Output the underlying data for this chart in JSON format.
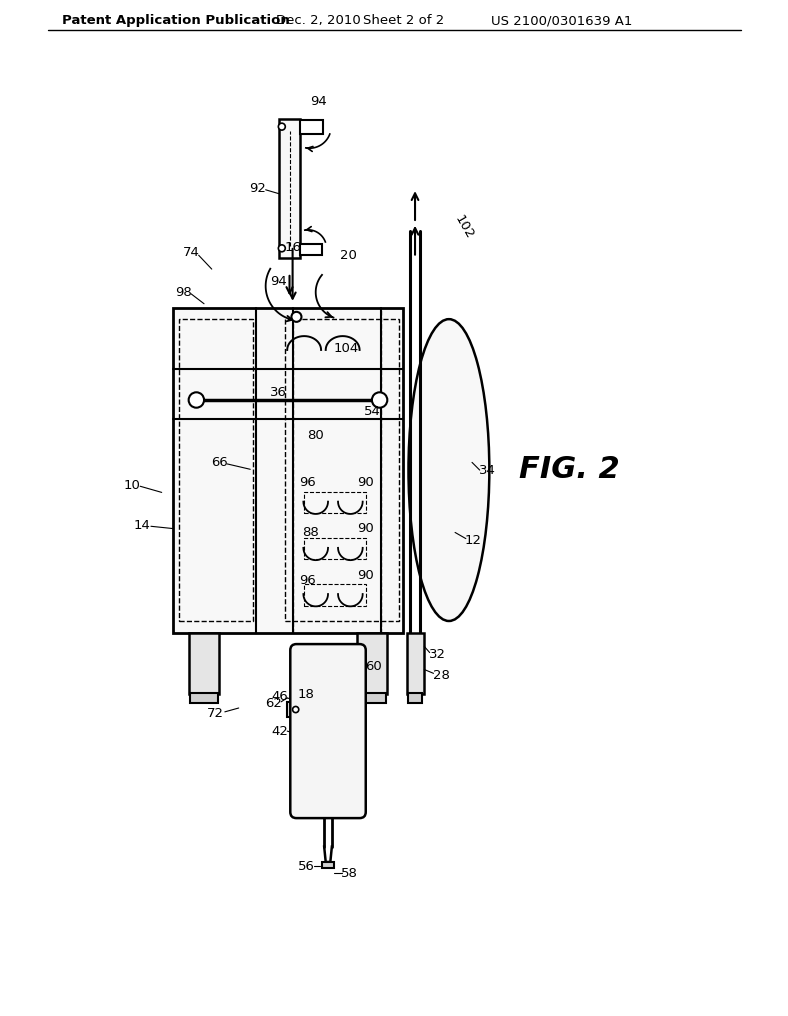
{
  "background_color": "#ffffff",
  "header_left": "Patent Application Publication",
  "header_mid": "Dec. 2, 2010   Sheet 2 of 2",
  "header_right": "US 2100/0301639 A1",
  "fig_label": "FIG. 2",
  "line_color": "#000000",
  "line_width": 1.5
}
